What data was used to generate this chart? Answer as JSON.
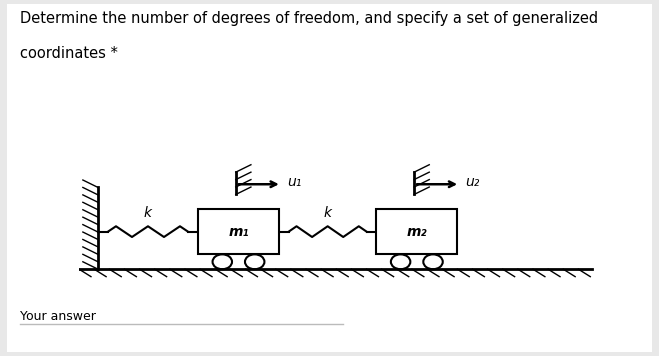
{
  "title_line1": "Determine the number of degrees of freedom, and specify a set of generalized",
  "title_line2": "coordinates *",
  "bg_color": "#e8e8e8",
  "panel_color": "#ffffff",
  "text_color": "#000000",
  "label_k1": "k",
  "label_k2": "k",
  "label_m1": "m₁",
  "label_m2": "m₂",
  "label_u1": "u₁",
  "label_u2": "u₂",
  "font_size_title": 10.5,
  "font_size_labels": 9,
  "font_size_answer": 9,
  "your_answer_text": "Your answer"
}
